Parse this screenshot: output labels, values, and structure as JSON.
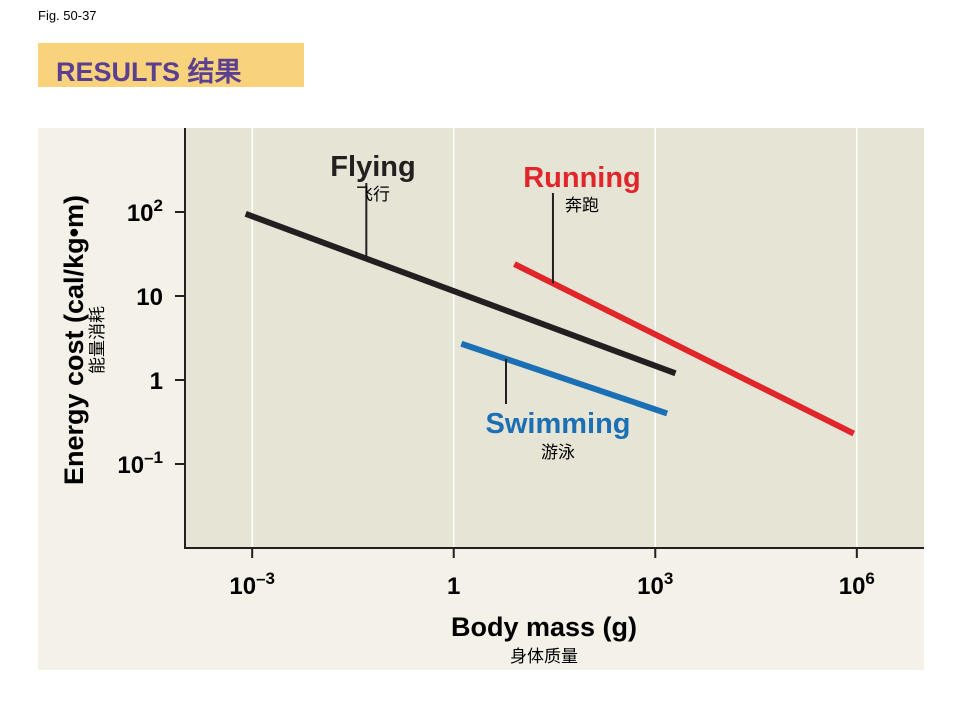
{
  "fig_label": "Fig. 50-37",
  "banner": {
    "title": "RESULTS 结果",
    "bg_color": "#f9d27c",
    "text_color": "#5b3f91"
  },
  "chart_data": {
    "type": "line",
    "xlabel": "Body mass (g)",
    "xlabel_sub": "身体质量",
    "ylabel": "Energy cost (cal/kg•m)",
    "ylabel_sub": "能量消耗",
    "x_scale": "log10",
    "y_scale": "log10",
    "x_ticks": [
      {
        "value": 0.001,
        "base": "10",
        "exp": "–3"
      },
      {
        "value": 1,
        "base": "1",
        "exp": ""
      },
      {
        "value": 1000,
        "base": "10",
        "exp": "3"
      },
      {
        "value": 1000000,
        "base": "10",
        "exp": "6"
      }
    ],
    "y_ticks": [
      {
        "value": 0.1,
        "base": "10",
        "exp": "–1"
      },
      {
        "value": 1,
        "base": "1",
        "exp": ""
      },
      {
        "value": 10,
        "base": "10",
        "exp": ""
      },
      {
        "value": 100,
        "base": "10",
        "exp": "2"
      }
    ],
    "xlim": [
      0.0001,
      10000000
    ],
    "ylim": [
      0.01,
      1000
    ],
    "grid": "vertical",
    "plot_bg": "#e6e4d5",
    "series": [
      {
        "name": "Flying",
        "sub": "飞行",
        "color": "#231f20",
        "points": [
          [
            0.0008,
            95
          ],
          [
            2000,
            1.2
          ]
        ],
        "pointer_x": 0.05
      },
      {
        "name": "Running",
        "sub": "奔跑",
        "color": "#e0262b",
        "points": [
          [
            8,
            24
          ],
          [
            900000,
            0.23
          ]
        ],
        "pointer_x": 30
      },
      {
        "name": "Swimming",
        "sub": "游泳",
        "color": "#1a6fb5",
        "points": [
          [
            1.3,
            2.7
          ],
          [
            1500,
            0.4
          ]
        ],
        "pointer_x": 6
      }
    ]
  }
}
